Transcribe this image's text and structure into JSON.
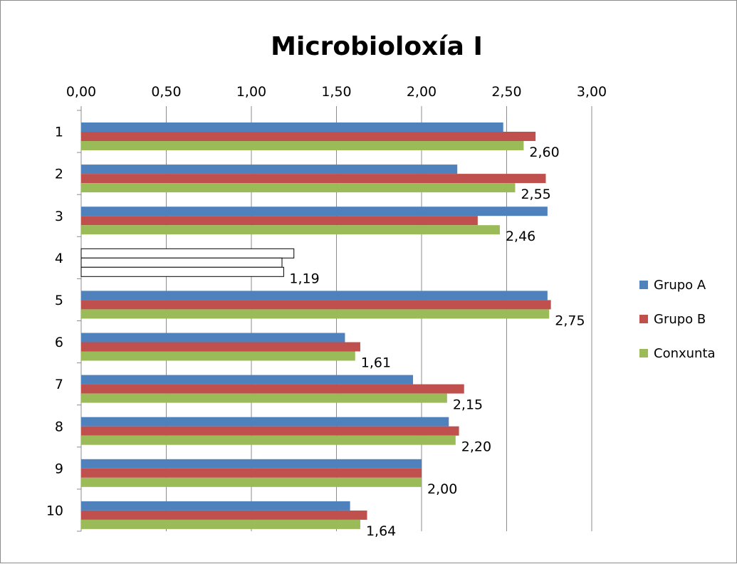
{
  "chart_data": {
    "type": "bar",
    "orientation": "horizontal",
    "title": "Microbioloxía I",
    "categories": [
      "1",
      "2",
      "3",
      "4",
      "5",
      "6",
      "7",
      "8",
      "9",
      "10"
    ],
    "xlim": [
      0,
      3
    ],
    "x_ticks": [
      "0,00",
      "0,50",
      "1,00",
      "1,50",
      "2,00",
      "2,50",
      "3,00"
    ],
    "grid": "vertical",
    "legend_position": "right",
    "series": [
      {
        "name": "Grupo A",
        "color": "#4f81bd",
        "values": [
          2.48,
          2.21,
          2.74,
          1.25,
          2.74,
          1.55,
          1.95,
          2.16,
          2.0,
          1.58
        ]
      },
      {
        "name": "Grupo B",
        "color": "#c0504d",
        "values": [
          2.67,
          2.73,
          2.33,
          1.18,
          2.76,
          1.64,
          2.25,
          2.22,
          2.0,
          1.68
        ]
      },
      {
        "name": "Conxunta",
        "color": "#9bbb59",
        "values": [
          2.6,
          2.55,
          2.46,
          1.19,
          2.75,
          1.61,
          2.15,
          2.2,
          2.0,
          1.64
        ]
      }
    ],
    "data_labels": [
      "2,60",
      "2,55",
      "2,46",
      "1,19",
      "2,75",
      "1,61",
      "2,15",
      "2,20",
      "2,00",
      "1,64"
    ],
    "outlined_category": "4"
  }
}
